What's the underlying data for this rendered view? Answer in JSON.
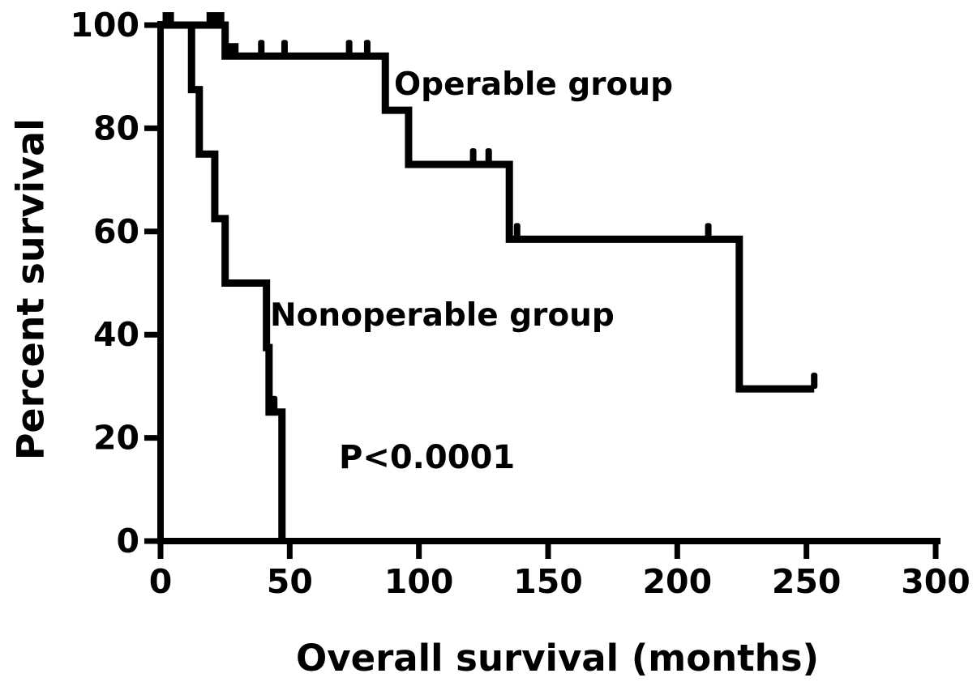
{
  "chart_data": {
    "type": "line",
    "subtype": "kaplan-meier-step",
    "title": "",
    "xlabel": "Overall survival (months)",
    "ylabel": "Percent survival",
    "xlim": [
      0,
      300
    ],
    "ylim": [
      0,
      100
    ],
    "x_ticks": [
      0,
      50,
      100,
      150,
      200,
      250,
      300
    ],
    "y_ticks": [
      0,
      20,
      40,
      60,
      80,
      100
    ],
    "grid": false,
    "legend_position": "inline-annotations",
    "line_color": "#000000",
    "background_color": "#ffffff",
    "annotations": {
      "p_value": "P<0.0001"
    },
    "series": [
      {
        "name": "Operable group",
        "label": "Operable group",
        "color": "#000000",
        "points": [
          [
            0,
            100
          ],
          [
            25,
            100
          ],
          [
            25,
            94
          ],
          [
            87,
            94
          ],
          [
            87,
            83.5
          ],
          [
            96,
            83.5
          ],
          [
            96,
            73
          ],
          [
            135,
            73
          ],
          [
            135,
            58.5
          ],
          [
            224,
            58.5
          ],
          [
            224,
            29.5
          ],
          [
            253,
            29.5
          ]
        ],
        "censors": {
          "squares": [
            [
              3,
              100
            ],
            [
              20,
              100
            ],
            [
              22.5,
              100
            ],
            [
              28,
              94
            ]
          ],
          "ticks": [
            [
              39,
              94
            ],
            [
              48,
              94
            ],
            [
              73,
              94
            ],
            [
              80,
              94
            ],
            [
              121,
              73
            ],
            [
              127,
              73
            ],
            [
              138,
              58.5
            ],
            [
              212,
              58.5
            ],
            [
              253,
              29.5
            ]
          ]
        }
      },
      {
        "name": "Nonoperable group",
        "label": "Nonoperable group",
        "color": "#000000",
        "points": [
          [
            0,
            100
          ],
          [
            12,
            100
          ],
          [
            12,
            87.5
          ],
          [
            15,
            87.5
          ],
          [
            15,
            75
          ],
          [
            21,
            75
          ],
          [
            21,
            62.5
          ],
          [
            25,
            62.5
          ],
          [
            25,
            50
          ],
          [
            41,
            50
          ],
          [
            41,
            37.5
          ],
          [
            42,
            37.5
          ],
          [
            42,
            25
          ],
          [
            47,
            25
          ],
          [
            47,
            0
          ]
        ],
        "censors": {
          "squares": [],
          "ticks": [
            [
              44,
              25
            ]
          ]
        }
      }
    ]
  }
}
